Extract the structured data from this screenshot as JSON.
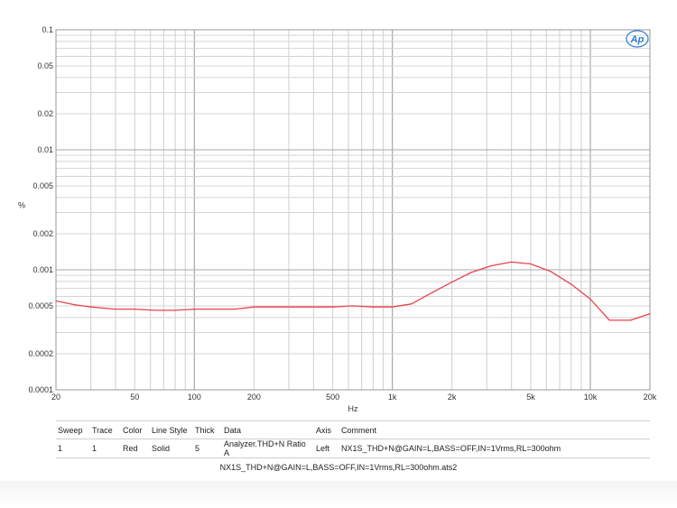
{
  "chart_data": {
    "type": "line",
    "x_scale": "log",
    "y_scale": "log",
    "xlabel": "Hz",
    "ylabel": "%",
    "xlim": [
      20,
      20000
    ],
    "ylim": [
      0.0001,
      0.1
    ],
    "grid": true,
    "x_tick_labels": [
      {
        "v": 20,
        "t": "20"
      },
      {
        "v": 50,
        "t": "50"
      },
      {
        "v": 100,
        "t": "100"
      },
      {
        "v": 200,
        "t": "200"
      },
      {
        "v": 500,
        "t": "500"
      },
      {
        "v": 1000,
        "t": "1k"
      },
      {
        "v": 2000,
        "t": "2k"
      },
      {
        "v": 5000,
        "t": "5k"
      },
      {
        "v": 10000,
        "t": "10k"
      },
      {
        "v": 20000,
        "t": "20k"
      }
    ],
    "y_tick_labels": [
      {
        "v": 0.1,
        "t": "0.1"
      },
      {
        "v": 0.05,
        "t": "0.05"
      },
      {
        "v": 0.02,
        "t": "0.02"
      },
      {
        "v": 0.01,
        "t": "0.01"
      },
      {
        "v": 0.005,
        "t": "0.005"
      },
      {
        "v": 0.002,
        "t": "0.002"
      },
      {
        "v": 0.001,
        "t": "0.001"
      },
      {
        "v": 0.0005,
        "t": "0.0005"
      },
      {
        "v": 0.0002,
        "t": "0.0002"
      },
      {
        "v": 0.0001,
        "t": "0.0001"
      }
    ],
    "series": [
      {
        "color": "#e8424b",
        "x": [
          20,
          25,
          30,
          40,
          50,
          63,
          80,
          100,
          125,
          160,
          200,
          250,
          315,
          400,
          500,
          630,
          800,
          1000,
          1250,
          1600,
          2000,
          2500,
          3150,
          4000,
          5000,
          6300,
          8000,
          10000,
          12500,
          16000,
          20000
        ],
        "y": [
          0.00055,
          0.00051,
          0.00049,
          0.00047,
          0.00047,
          0.00046,
          0.00046,
          0.00047,
          0.00047,
          0.00047,
          0.00049,
          0.00049,
          0.00049,
          0.00049,
          0.00049,
          0.0005,
          0.00049,
          0.00049,
          0.00052,
          0.00065,
          0.00079,
          0.00095,
          0.00108,
          0.00116,
          0.00112,
          0.00097,
          0.00076,
          0.00057,
          0.00038,
          0.00038,
          0.00043
        ]
      }
    ]
  },
  "logo": {
    "text": "Ap",
    "color": "#2f7fd0"
  },
  "legend": {
    "headers": [
      "Sweep",
      "Trace",
      "Color",
      "Line Style",
      "Thick",
      "Data",
      "Axis",
      "Comment"
    ],
    "rows": [
      [
        "1",
        "1",
        "Red",
        "Solid",
        "5",
        "Analyzer.THD+N Ratio A",
        "Left",
        "NX1S_THD+N@GAIN=L,BASS=OFF,IN=1Vrms,RL=300ohm"
      ]
    ]
  },
  "filename": "NX1S_THD+N@GAIN=L,BASS=OFF,IN=1Vrms,RL=300ohm.ats2"
}
